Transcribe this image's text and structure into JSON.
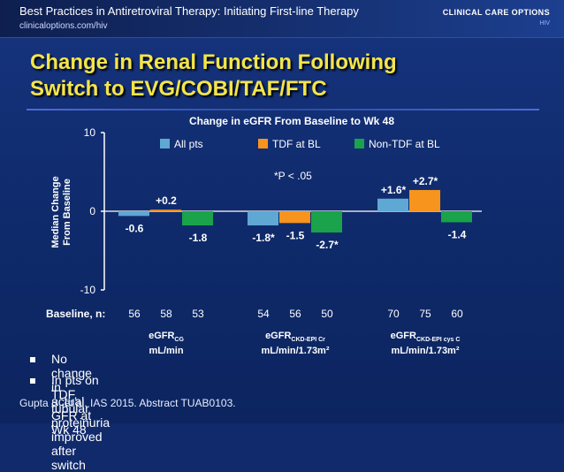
{
  "header": {
    "title": "Best Practices in Antiretroviral Therapy: Initiating First-line Therapy",
    "subtitle": "clinicaloptions.com/hiv",
    "logo_text": "CLINICAL CARE OPTIONS",
    "logo_sub": "HIV"
  },
  "slide": {
    "title_line1": "Change in Renal Function Following",
    "title_line2": "Switch to EVG/COBI/TAF/FTC"
  },
  "chart_data": {
    "type": "bar",
    "title": "Change in eGFR From Baseline to Wk 48",
    "ylabel_line1": "Median Change",
    "ylabel_line2": "From Baseline",
    "ylim": [
      -10,
      10
    ],
    "yticks": [
      "10",
      "0",
      "-10"
    ],
    "grid": false,
    "legend_position": "top",
    "footnote": "*P < .05",
    "series_names": [
      "All pts",
      "TDF at BL",
      "Non-TDF at BL"
    ],
    "series_colors": [
      "#5fa8d3",
      "#f7941d",
      "#1aa34a"
    ],
    "groups": [
      {
        "label_main": "eGFR",
        "label_sub": "CG",
        "label_line2": "mL/min",
        "values": [
          -0.6,
          0.2,
          -1.8
        ],
        "value_labels": [
          "-0.6",
          "+0.2",
          "-1.8"
        ],
        "baseline_n": [
          "56",
          "58",
          "53"
        ]
      },
      {
        "label_main": "eGFR",
        "label_sub": "CKD-EPI Cr",
        "label_line2": "mL/min/1.73m²",
        "values": [
          -1.8,
          -1.5,
          -2.7
        ],
        "value_labels": [
          "-1.8*",
          "-1.5",
          "-2.7*"
        ],
        "baseline_n": [
          "54",
          "56",
          "50"
        ]
      },
      {
        "label_main": "eGFR",
        "label_sub": "CKD-EPI cys C",
        "label_line2": "mL/min/1.73m²",
        "values": [
          1.6,
          2.7,
          -1.4
        ],
        "value_labels": [
          "+1.6*",
          "+2.7*",
          "-1.4"
        ],
        "baseline_n": [
          "70",
          "75",
          "60"
        ]
      }
    ],
    "baseline_label": "Baseline, n:"
  },
  "bullets": [
    "No change in actual GFR at Wk 48",
    "In pts on TDF, tubular proteinuria improved after switch"
  ],
  "citation": "Gupta S, et al. IAS 2015. Abstract TUAB0103."
}
